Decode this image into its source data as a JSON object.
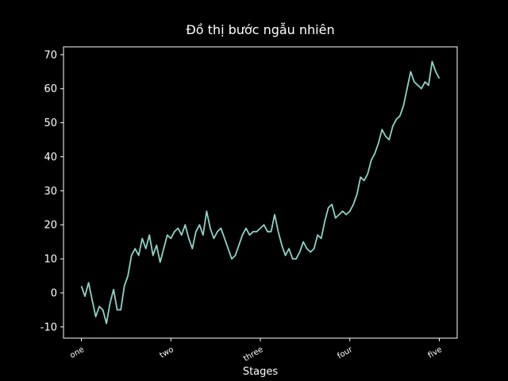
{
  "chart_data": {
    "type": "line",
    "title": "Đồ thị bước ngẫu nhiên",
    "xlabel": "Stages",
    "x": [
      0,
      10,
      20,
      30,
      40,
      50,
      60,
      70,
      80,
      90,
      100,
      110,
      120,
      130,
      140,
      150,
      160,
      170,
      180,
      190,
      200,
      210,
      220,
      230,
      240,
      250,
      260,
      270,
      280,
      290,
      300,
      310,
      320,
      330,
      340,
      350,
      360,
      370,
      380,
      390,
      400,
      410,
      420,
      430,
      440,
      450,
      460,
      470,
      480,
      490,
      500,
      510,
      520,
      530,
      540,
      550,
      560,
      570,
      580,
      590,
      600,
      610,
      620,
      630,
      640,
      650,
      660,
      670,
      680,
      690,
      700,
      710,
      720,
      730,
      740,
      750,
      760,
      770,
      780,
      790,
      800,
      810,
      820,
      830,
      840,
      850,
      860,
      870,
      880,
      890,
      900,
      910,
      920,
      930,
      940,
      950,
      960,
      970,
      980,
      990,
      1000
    ],
    "series": [
      {
        "color": "#8dd3c7",
        "values": [
          2,
          -1,
          3,
          -2,
          -7,
          -4,
          -5,
          -9,
          -3,
          1,
          -5,
          -5,
          2,
          5,
          11,
          13,
          11,
          16,
          13,
          17,
          11,
          14,
          9,
          13,
          17,
          16,
          18,
          19,
          17,
          20,
          16,
          13,
          18,
          20,
          17,
          24,
          19,
          16,
          18,
          19,
          16,
          13,
          10,
          11,
          14,
          17,
          19,
          17,
          18,
          18,
          19,
          20,
          18,
          18,
          23,
          18,
          14,
          11,
          13,
          10,
          10,
          12,
          15,
          13,
          12,
          13,
          17,
          16,
          21,
          25,
          26,
          22,
          23,
          24,
          23,
          24,
          26,
          29,
          34,
          33,
          35,
          39,
          41,
          44,
          48,
          46,
          45,
          49,
          51,
          52,
          55,
          60,
          65,
          62,
          61,
          60,
          62,
          61,
          68,
          65,
          63
        ]
      }
    ],
    "xlim": [
      -50,
      1050
    ],
    "ylim": [
      -13.3,
      72.3
    ],
    "xticks": [
      {
        "value": 0,
        "label": "one"
      },
      {
        "value": 250,
        "label": "two"
      },
      {
        "value": 500,
        "label": "three"
      },
      {
        "value": 750,
        "label": "four"
      },
      {
        "value": 1000,
        "label": "five"
      }
    ],
    "yticks": [
      -10,
      0,
      10,
      20,
      30,
      40,
      50,
      60,
      70
    ]
  }
}
